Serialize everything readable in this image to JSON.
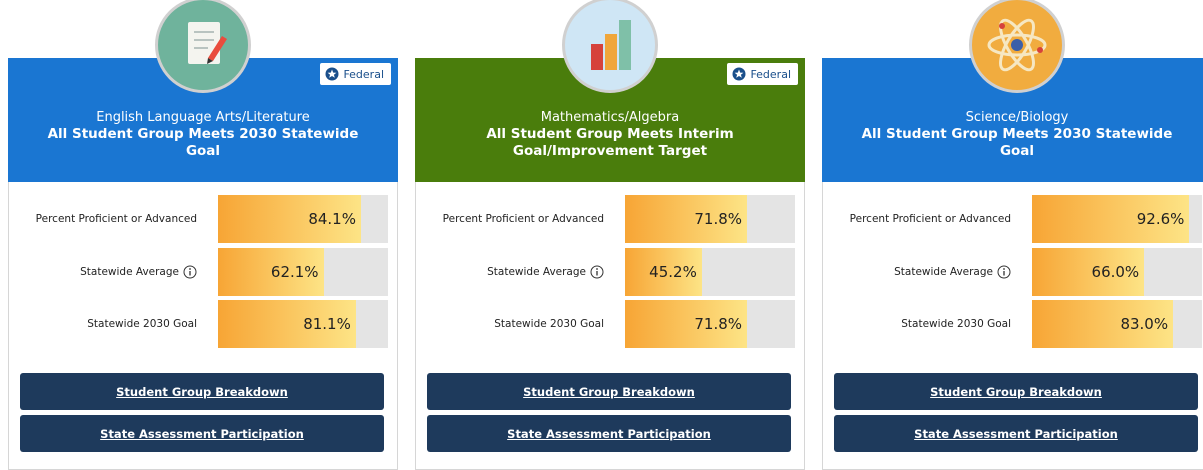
{
  "xlim": [
    0,
    100
  ],
  "cards": [
    {
      "subject": "English Language Arts/Literature",
      "status": "All Student Group Meets 2030 Statewide Goal",
      "badge": "Federal",
      "header_color": "#1a76d2",
      "rows": [
        {
          "label": "Percent Proficient or Advanced",
          "value": 84.1,
          "value_label": "84.1%"
        },
        {
          "label": "Statewide Average",
          "info": true,
          "value": 62.1,
          "value_label": "62.1%"
        },
        {
          "label": "Statewide 2030 Goal",
          "value": 81.1,
          "value_label": "81.1%"
        }
      ],
      "buttons": [
        "Student Group Breakdown",
        "State Assessment Participation"
      ]
    },
    {
      "subject": "Mathematics/Algebra",
      "status": "All Student Group Meets Interim Goal/Improvement Target",
      "badge": "Federal",
      "header_color": "#4a7d0c",
      "rows": [
        {
          "label": "Percent Proficient or Advanced",
          "value": 71.8,
          "value_label": "71.8%"
        },
        {
          "label": "Statewide Average",
          "info": true,
          "value": 45.2,
          "value_label": "45.2%"
        },
        {
          "label": "Statewide 2030 Goal",
          "value": 71.8,
          "value_label": "71.8%"
        }
      ],
      "buttons": [
        "Student Group Breakdown",
        "State Assessment Participation"
      ]
    },
    {
      "subject": "Science/Biology",
      "status": "All Student Group Meets 2030 Statewide Goal",
      "header_color": "#1a76d2",
      "rows": [
        {
          "label": "Percent Proficient or Advanced",
          "value": 92.6,
          "value_label": "92.6%"
        },
        {
          "label": "Statewide Average",
          "info": true,
          "value": 66.0,
          "value_label": "66.0%"
        },
        {
          "label": "Statewide 2030 Goal",
          "value": 83.0,
          "value_label": "83.0%"
        }
      ],
      "buttons": [
        "Student Group Breakdown",
        "State Assessment Participation"
      ]
    }
  ]
}
